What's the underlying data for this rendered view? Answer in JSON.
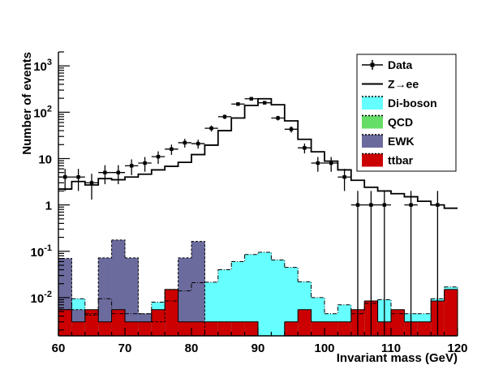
{
  "chart_data": {
    "type": "histogram",
    "xlabel": "Invariant mass (GeV)",
    "ylabel": "Number of events",
    "xlim": [
      60,
      120
    ],
    "ylim": [
      0.0015,
      2000
    ],
    "yscale": "log",
    "bin_width": 2,
    "x_tick_labels": [
      "60",
      "70",
      "80",
      "90",
      "100",
      "110",
      "120"
    ],
    "y_tick_labels": [
      {
        "value": 0.01,
        "base": "10",
        "exp": "-2"
      },
      {
        "value": 0.1,
        "base": "10",
        "exp": "-1"
      },
      {
        "value": 1,
        "base": "1",
        "exp": ""
      },
      {
        "value": 10,
        "base": "10",
        "exp": ""
      },
      {
        "value": 100,
        "base": "10",
        "exp": "2"
      },
      {
        "value": 1000,
        "base": "10",
        "exp": "3"
      }
    ],
    "legend_position": "top-right",
    "legend": [
      {
        "label": "Data",
        "style": "marker"
      },
      {
        "label": "Z→ee",
        "style": "line"
      },
      {
        "label": "Di-boson",
        "style": "fill",
        "color": "#66ffff"
      },
      {
        "label": "QCD",
        "style": "fill",
        "color": "#66dd66"
      },
      {
        "label": "EWK",
        "style": "fill",
        "color": "#6b6b9e"
      },
      {
        "label": "ttbar",
        "style": "fill",
        "color": "#cc0000"
      }
    ],
    "bin_edges": [
      60,
      62,
      64,
      66,
      68,
      70,
      72,
      74,
      76,
      78,
      80,
      82,
      84,
      86,
      88,
      90,
      92,
      94,
      96,
      98,
      100,
      102,
      104,
      106,
      108,
      110,
      112,
      114,
      116,
      118,
      120
    ],
    "series": [
      {
        "name": "Z→ee",
        "values": [
          2.2,
          3.2,
          2.7,
          3.7,
          3.5,
          4.0,
          4.6,
          5.7,
          6.8,
          8.3,
          12.2,
          19.5,
          40,
          75,
          140,
          195,
          145,
          65,
          26,
          14,
          8.8,
          5.7,
          3.4,
          2.4,
          2.0,
          1.75,
          1.5,
          1.2,
          1.0,
          0.85,
          0.55
        ]
      },
      {
        "name": "Di-boson",
        "values": [
          0.0055,
          0.0095,
          0.0045,
          0.0095,
          0.0045,
          0.0045,
          0.0045,
          0.008,
          0.0085,
          0.014,
          0.021,
          0.0215,
          0.04,
          0.06,
          0.085,
          0.095,
          0.065,
          0.045,
          0.022,
          0.01,
          0.0045,
          0.007,
          0.0045,
          0.0075,
          0.009,
          0.0045,
          0.0045,
          0.0045,
          0.0095,
          0.017
        ]
      },
      {
        "name": "QCD",
        "values": []
      },
      {
        "name": "EWK",
        "values": [
          0.07,
          0.0055,
          0.0042,
          0.072,
          0.175,
          0.072,
          0.0045,
          0.003,
          0.015,
          0.072,
          0.163,
          0,
          0,
          0,
          0,
          0,
          0,
          0,
          0,
          0,
          0,
          0,
          0,
          0,
          0,
          0,
          0,
          0,
          0,
          0
        ]
      },
      {
        "name": "ttbar",
        "values": [
          0.0055,
          0.003,
          0.0055,
          0.003,
          0.0055,
          0.003,
          0.003,
          0.0055,
          0.015,
          0.003,
          0.003,
          0.003,
          0.003,
          0.003,
          0.003,
          0,
          0,
          0.003,
          0.0055,
          0.003,
          0.003,
          0.003,
          0.0055,
          0.0085,
          0.003,
          0.0055,
          0.003,
          0.003,
          0.0085,
          0.015
        ]
      },
      {
        "name": "Data",
        "x": [
          61,
          63,
          65,
          67,
          69,
          71,
          73,
          75,
          77,
          79,
          81,
          83,
          85,
          87,
          89,
          91,
          93,
          95,
          97,
          99,
          101,
          103,
          105,
          107,
          109,
          113,
          117
        ],
        "y": [
          4.0,
          4.0,
          3.0,
          5.0,
          5.0,
          7.0,
          8.0,
          11.0,
          16.0,
          22.0,
          21.0,
          45.0,
          80.0,
          150.0,
          195.0,
          160.0,
          75.0,
          43.0,
          17.0,
          8.0,
          8.0,
          4.0,
          1.0,
          1.0,
          1.0,
          1.0,
          1.0
        ],
        "yerr": [
          2.0,
          2.0,
          1.7,
          2.2,
          2.2,
          2.6,
          2.8,
          3.3,
          4.0,
          4.7,
          4.6,
          6.7,
          9.0,
          12.2,
          14.0,
          12.6,
          8.7,
          6.6,
          4.1,
          2.8,
          2.8,
          2.0,
          1.0,
          1.0,
          1.0,
          1.0,
          1.0
        ]
      }
    ]
  }
}
